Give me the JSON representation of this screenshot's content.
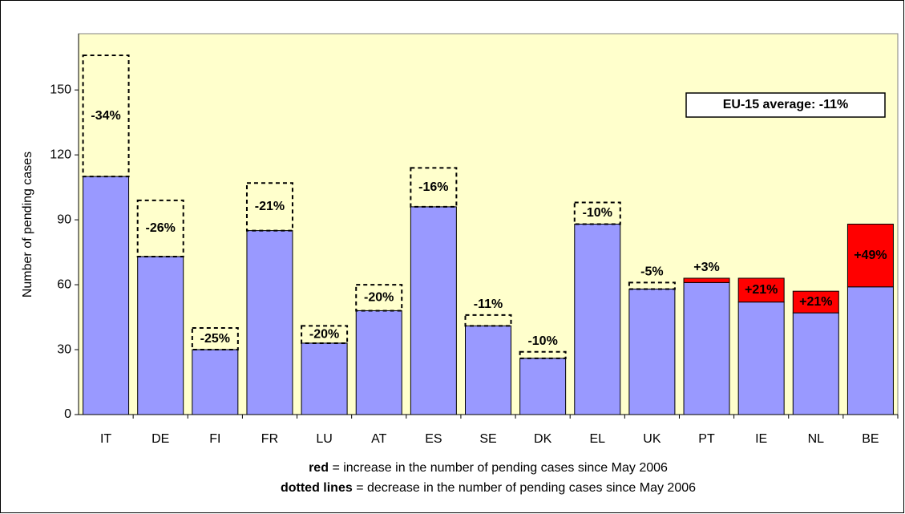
{
  "chart_data": {
    "type": "bar",
    "y_label": "Number of pending cases",
    "categories": [
      "IT",
      "DE",
      "FI",
      "FR",
      "LU",
      "AT",
      "ES",
      "SE",
      "DK",
      "EL",
      "UK",
      "PT",
      "IE",
      "NL",
      "BE"
    ],
    "series": [
      {
        "color": "#9999ff",
        "values": [
          110,
          73,
          30,
          85,
          33,
          48,
          96,
          41,
          26,
          88,
          58,
          61,
          52,
          47,
          59
        ]
      },
      {
        "color": "#ff0000",
        "style": "solid",
        "values": [
          null,
          null,
          null,
          null,
          null,
          null,
          null,
          null,
          null,
          null,
          null,
          2,
          11,
          10,
          29
        ]
      },
      {
        "color": "none",
        "style": "dotted",
        "values": [
          56,
          26,
          10,
          22,
          8,
          12,
          18,
          5,
          3,
          10,
          3,
          null,
          null,
          null,
          null
        ]
      }
    ],
    "change": {
      "values": [
        -34,
        -26,
        -25,
        -21,
        -20,
        -20,
        -16,
        -11,
        -10,
        -10,
        -5,
        3,
        21,
        21,
        49
      ],
      "value_labels": [
        "-34%",
        "-26%",
        "-25%",
        "-21%",
        "-20%",
        "-20%",
        "-16%",
        "-11%",
        "-10%",
        "-10%",
        "-5%",
        "+3%",
        "+21%",
        "+21%",
        "+49%"
      ]
    },
    "annotation": "EU-15 average: -11%",
    "legend": [
      {
        "key": "red",
        "text": "= increase in the number of pending cases since May 2006"
      },
      {
        "key": "dotted lines",
        "text": "= decrease in the number of pending cases since May 2006"
      }
    ],
    "ylim": [
      0,
      176
    ],
    "yticks": [
      0,
      30,
      60,
      90,
      120,
      150
    ],
    "plot_background": "#ffffcc"
  }
}
